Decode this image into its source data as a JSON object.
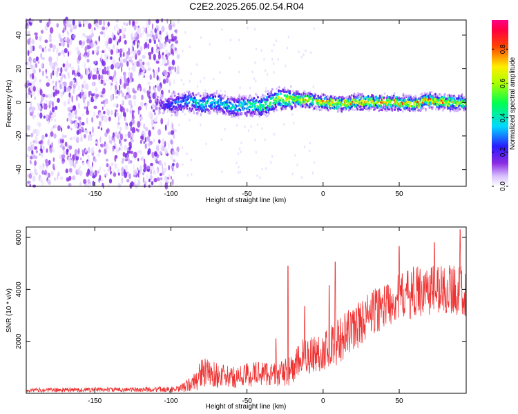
{
  "title": "C2E2.2025.265.02.54.R04",
  "chart_data": [
    {
      "type": "heatmap",
      "xlabel": "Height of straight line (km)",
      "ylabel": "Frequency (Hz)",
      "xlim": [
        -195,
        94
      ],
      "ylim": [
        -50,
        49
      ],
      "xticks": [
        -150,
        -100,
        -50,
        0,
        50
      ],
      "yticks": [
        -40,
        -20,
        0,
        20,
        40
      ],
      "colorbar": {
        "label": "Normalized spectral amplitude",
        "range": [
          0,
          0.97
        ],
        "ticks": [
          "0.0",
          "0.2",
          "0.4",
          "0.6",
          "0.8"
        ],
        "colormap": "white-purple-blue-cyan-green-yellow-red-magenta"
      },
      "noise_region_x": [
        -195,
        -95
      ],
      "signal_ridge": {
        "x": [
          -110,
          -100,
          -90,
          -80,
          -70,
          -60,
          -50,
          -40,
          -30,
          -20,
          -10,
          0,
          10,
          20,
          30,
          40,
          50,
          60,
          70,
          80,
          94
        ],
        "frequency_hz": [
          -1,
          -2,
          1,
          -1,
          0,
          -3,
          -2,
          -2,
          2,
          2,
          1,
          0,
          -1,
          0,
          0,
          0,
          0,
          -1,
          1,
          0,
          0
        ],
        "peak_amplitude": [
          0.15,
          0.3,
          0.4,
          0.5,
          0.5,
          0.45,
          0.5,
          0.6,
          0.7,
          0.8,
          0.85,
          0.85,
          0.85,
          0.9,
          0.9,
          0.9,
          0.9,
          0.9,
          0.9,
          0.9,
          0.8
        ]
      }
    },
    {
      "type": "line",
      "xlabel": "Height of straight line (km)",
      "ylabel": "SNR (10 * v/v)",
      "xlim": [
        -195,
        94
      ],
      "ylim": [
        0,
        6400
      ],
      "xticks": [
        -150,
        -100,
        -50,
        0,
        50
      ],
      "yticks": [
        2000,
        4000,
        6000
      ],
      "series": [
        {
          "color": "#ee3333",
          "x": [
            -195,
            -170,
            -150,
            -130,
            -110,
            -95,
            -85,
            -80,
            -70,
            -60,
            -50,
            -40,
            -30,
            -20,
            -15,
            -10,
            -5,
            0,
            5,
            10,
            20,
            30,
            40,
            50,
            60,
            70,
            80,
            90,
            94
          ],
          "mean": [
            120,
            130,
            140,
            140,
            150,
            150,
            400,
            800,
            700,
            600,
            700,
            800,
            700,
            900,
            1300,
            1500,
            1500,
            1600,
            1800,
            2000,
            2500,
            3000,
            3400,
            3700,
            3900,
            4000,
            4000,
            4000,
            3900
          ],
          "spread": [
            80,
            90,
            90,
            90,
            100,
            120,
            350,
            600,
            500,
            400,
            500,
            500,
            450,
            600,
            700,
            800,
            800,
            700,
            900,
            900,
            900,
            900,
            900,
            900,
            1000,
            1000,
            1000,
            1000,
            1000
          ],
          "spikes": [
            {
              "x": -31,
              "y": 2100
            },
            {
              "x": -23,
              "y": 4900
            },
            {
              "x": -12,
              "y": 3350
            },
            {
              "x": 4,
              "y": 4150
            },
            {
              "x": 8,
              "y": 5050
            },
            {
              "x": 50,
              "y": 5650
            },
            {
              "x": 73,
              "y": 5800
            },
            {
              "x": 90,
              "y": 6300
            }
          ]
        }
      ]
    }
  ]
}
